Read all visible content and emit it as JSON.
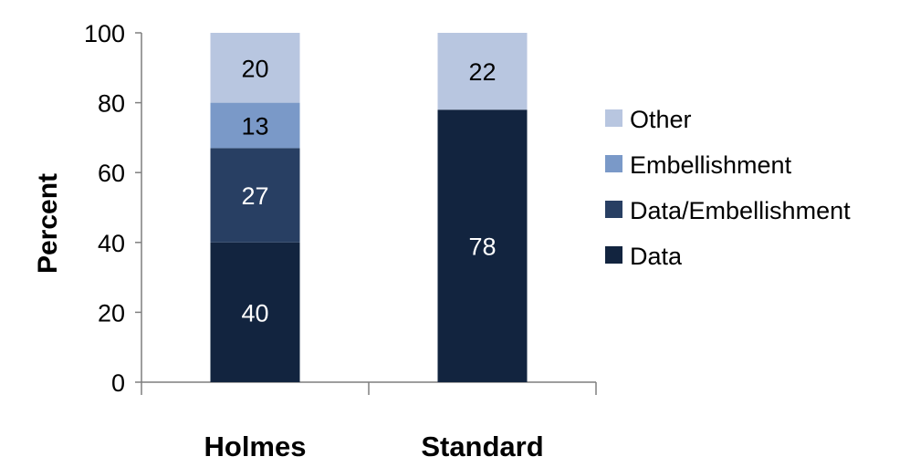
{
  "chart_data": {
    "type": "bar",
    "stacked": true,
    "categories": [
      "Holmes",
      "Standard"
    ],
    "ylabel": "Percent",
    "ylim": [
      0,
      100
    ],
    "yticks": [
      0,
      20,
      40,
      60,
      80,
      100
    ],
    "grid": false,
    "legend_position": "right",
    "series": [
      {
        "name": "Data",
        "values": [
          40,
          78
        ],
        "color": "#12243f"
      },
      {
        "name": "Data/Embellishment",
        "values": [
          27,
          0
        ],
        "color": "#283f63"
      },
      {
        "name": "Embellishment",
        "values": [
          13,
          0
        ],
        "color": "#7a99c8"
      },
      {
        "name": "Other",
        "values": [
          20,
          22
        ],
        "color": "#b8c6e0"
      }
    ]
  }
}
